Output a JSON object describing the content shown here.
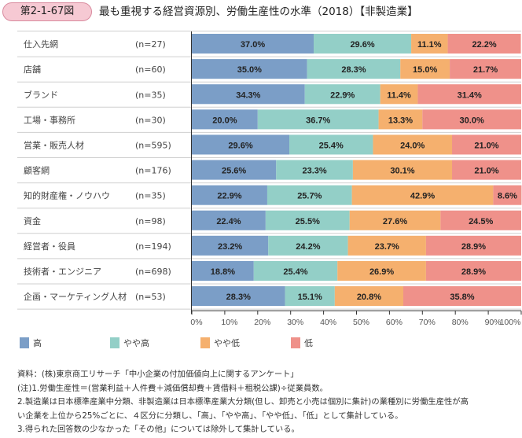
{
  "figure": {
    "number": "第2-1-67図",
    "title": "最も重視する経営資源別、労働生産性の水準（2018）【非製造業】"
  },
  "chart_data": {
    "type": "bar",
    "orientation": "horizontal",
    "stacked": true,
    "title": "最も重視する経営資源別、労働生産性の水準（2018）【非製造業】",
    "xlabel": "",
    "ylabel": "",
    "xlim": [
      0,
      100
    ],
    "x_ticks": [
      "0%",
      "10%",
      "20%",
      "30%",
      "40%",
      "50%",
      "60%",
      "70%",
      "80%",
      "90%",
      "100%"
    ],
    "categories": [
      "仕入先網",
      "店舗",
      "ブランド",
      "工場・事務所",
      "営業・販売人材",
      "顧客網",
      "知的財産権・ノウハウ",
      "資金",
      "経営者・役員",
      "技術者・エンジニア",
      "企画・マーケティング人材"
    ],
    "n_labels": [
      "(n=27)",
      "(n=60)",
      "(n=35)",
      "(n=30)",
      "(n=595)",
      "(n=176)",
      "(n=35)",
      "(n=98)",
      "(n=194)",
      "(n=698)",
      "(n=53)"
    ],
    "series": [
      {
        "name": "高",
        "color": "#7b9ec7",
        "values": [
          37.0,
          35.0,
          34.3,
          20.0,
          29.6,
          25.6,
          22.9,
          22.4,
          23.2,
          18.8,
          28.3
        ]
      },
      {
        "name": "やや高",
        "color": "#93cfc7",
        "values": [
          29.6,
          28.3,
          22.9,
          36.7,
          25.4,
          23.3,
          25.7,
          25.5,
          24.2,
          25.4,
          15.1
        ]
      },
      {
        "name": "やや低",
        "color": "#f5b06e",
        "values": [
          11.1,
          15.0,
          11.4,
          13.3,
          24.0,
          30.1,
          42.9,
          27.6,
          23.7,
          26.9,
          20.8
        ]
      },
      {
        "name": "低",
        "color": "#ef918a",
        "values": [
          22.2,
          21.7,
          31.4,
          30.0,
          21.0,
          21.0,
          8.6,
          24.5,
          28.9,
          28.9,
          35.8
        ]
      }
    ],
    "data_labels": [
      [
        "37.0%",
        "29.6%",
        "11.1%",
        "22.2%"
      ],
      [
        "35.0%",
        "28.3%",
        "15.0%",
        "21.7%"
      ],
      [
        "34.3%",
        "22.9%",
        "11.4%",
        "31.4%"
      ],
      [
        "20.0%",
        "36.7%",
        "13.3%",
        "30.0%"
      ],
      [
        "29.6%",
        "25.4%",
        "24.0%",
        "21.0%"
      ],
      [
        "25.6%",
        "23.3%",
        "30.1%",
        "21.0%"
      ],
      [
        "22.9%",
        "25.7%",
        "42.9%",
        "8.6%"
      ],
      [
        "22.4%",
        "25.5%",
        "27.6%",
        "24.5%"
      ],
      [
        "23.2%",
        "24.2%",
        "23.7%",
        "28.9%"
      ],
      [
        "18.8%",
        "25.4%",
        "26.9%",
        "28.9%"
      ],
      [
        "28.3%",
        "15.1%",
        "20.8%",
        "35.8%"
      ]
    ],
    "legend_position": "bottom",
    "grid": false
  },
  "legend": [
    {
      "label": "高",
      "color": "#7b9ec7"
    },
    {
      "label": "やや高",
      "color": "#93cfc7"
    },
    {
      "label": "やや低",
      "color": "#f5b06e"
    },
    {
      "label": "低",
      "color": "#ef918a"
    }
  ],
  "notes": [
    "資料：(株)東京商工リサーチ「中小企業の付加価値向上に関するアンケート」",
    "(注)1.労働生産性＝(営業利益＋人件費＋減価償却費＋賃借料＋租税公課)÷従業員数。",
    "2.製造業は日本標準産業中分類、非製造業は日本標準産業大分類(但し、卸売と小売は個別に集計)の業種別に労働生産性が高",
    "い企業を上位から25%ごとに、４区分に分類し、「高」、「やや高」、「やや低」、「低」として集計している。",
    "3.得られた回答数の少なかった「その他」については除外して集計している。"
  ]
}
